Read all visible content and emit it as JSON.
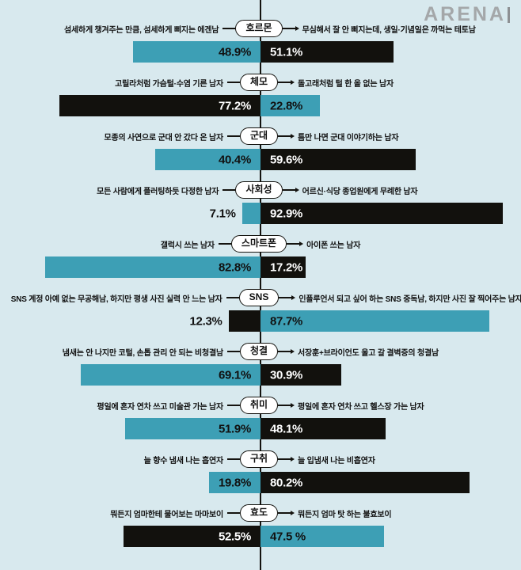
{
  "logo": {
    "text": "ARENA"
  },
  "colors": {
    "background": "#d8e9ee",
    "teal": "#3d9fb5",
    "bar_black": "#12110d",
    "line": "#14130f",
    "text": "#111111",
    "logo_gray": "#a4a7a9",
    "pill_bg": "#ffffff",
    "bar_text_on_black": "#ffffff"
  },
  "chart_data": {
    "type": "bar",
    "orientation": "diverging-horizontal",
    "unit": "%",
    "value_range": [
      0,
      100
    ],
    "legend": "none",
    "rows": [
      {
        "category": "호르몬",
        "left": {
          "label": "섬세하게 챙겨주는 만큼, 섬세하게 삐지는 에겐남",
          "value": 48.9,
          "display": "48.9%",
          "color": "teal"
        },
        "right": {
          "label": "무심해서 잘 안 삐지는데, 생일·기념일은 까먹는 테토남",
          "value": 51.1,
          "display": "51.1%",
          "color": "black"
        }
      },
      {
        "category": "체모",
        "left": {
          "label": "고릴라처럼 가슴털·수염 기른 남자",
          "value": 77.2,
          "display": "77.2%",
          "color": "black"
        },
        "right": {
          "label": "돌고래처럼 털 한 올 없는 남자",
          "value": 22.8,
          "display": "22.8%",
          "color": "teal"
        }
      },
      {
        "category": "군대",
        "left": {
          "label": "모종의 사연으로 군대 안 갔다 온 남자",
          "value": 40.4,
          "display": "40.4%",
          "color": "teal"
        },
        "right": {
          "label": "틈만 나면 군대 이야기하는 남자",
          "value": 59.6,
          "display": "59.6%",
          "color": "black"
        }
      },
      {
        "category": "사회성",
        "left": {
          "label": "모든 사람에게 플러팅하듯 다정한 남자",
          "value": 7.1,
          "display": "7.1%",
          "color": "teal"
        },
        "right": {
          "label": "어르신·식당 종업원에게 무례한 남자",
          "value": 92.9,
          "display": "92.9%",
          "color": "black"
        }
      },
      {
        "category": "스마트폰",
        "left": {
          "label": "갤럭시 쓰는 남자",
          "value": 82.8,
          "display": "82.8%",
          "color": "teal"
        },
        "right": {
          "label": "아이폰 쓰는 남자",
          "value": 17.2,
          "display": "17.2%",
          "color": "black"
        }
      },
      {
        "category": "SNS",
        "left": {
          "label": "SNS 계정 아예 없는 무공해남, 하지만 평생 사진 실력 안 느는 남자",
          "value": 12.3,
          "display": "12.3%",
          "color": "black"
        },
        "right": {
          "label": "인플루언서 되고 싶어 하는 SNS 중독남, 하지만 사진 잘 찍어주는 남자",
          "value": 87.7,
          "display": "87.7%",
          "color": "teal"
        }
      },
      {
        "category": "청결",
        "left": {
          "label": "냄새는 안 나지만 코털, 손톱 관리 안 되는 비청결남",
          "value": 69.1,
          "display": "69.1%",
          "color": "teal"
        },
        "right": {
          "label": "서장훈+브라이언도 울고 갈 결벽증의 청결남",
          "value": 30.9,
          "display": "30.9%",
          "color": "black"
        }
      },
      {
        "category": "취미",
        "left": {
          "label": "평일에 혼자 연차 쓰고 미술관 가는 남자",
          "value": 51.9,
          "display": "51.9%",
          "color": "teal"
        },
        "right": {
          "label": "평일에 혼자 연차 쓰고 헬스장 가는 남자",
          "value": 48.1,
          "display": "48.1%",
          "color": "black"
        }
      },
      {
        "category": "구취",
        "left": {
          "label": "늘 향수 냄새 나는 흡연자",
          "value": 19.8,
          "display": "19.8%",
          "color": "teal"
        },
        "right": {
          "label": "늘 입냄새 나는 비흡연자",
          "value": 80.2,
          "display": "80.2%",
          "color": "black"
        }
      },
      {
        "category": "효도",
        "left": {
          "label": "뭐든지 엄마한테 물어보는 마마보이",
          "value": 52.5,
          "display": "52.5%",
          "color": "black"
        },
        "right": {
          "label": "뭐든지 엄마 탓 하는 불효보이",
          "value": 47.5,
          "display": "47.5 %",
          "color": "teal"
        }
      }
    ]
  }
}
